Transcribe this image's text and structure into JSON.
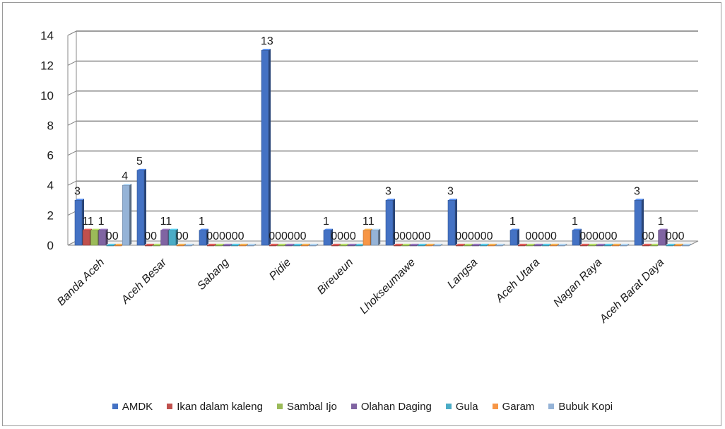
{
  "chart_data": {
    "type": "bar",
    "title": "",
    "xlabel": "",
    "ylabel": "",
    "ylim": [
      0,
      14
    ],
    "yticks": [
      "0",
      "2",
      "4",
      "6",
      "8",
      "10",
      "12",
      "14"
    ],
    "grid": true,
    "legend_position": "bottom",
    "categories": [
      "Banda Aceh",
      "Aceh Besar",
      "Sabang",
      "Pidie",
      "Bireueun",
      "Lhokseumawe",
      "Langsa",
      "Aceh Utara",
      "Nagan Raya",
      "Aceh Barat Daya"
    ],
    "series": [
      {
        "name": "AMDK",
        "color": "#4472C4",
        "values": [
          3,
          5,
          1,
          13,
          1,
          3,
          3,
          1,
          1,
          3
        ]
      },
      {
        "name": "Ikan dalam kaleng",
        "color": "#C0504D",
        "values": [
          1,
          0,
          0,
          0,
          0,
          0,
          0,
          0,
          0,
          0
        ]
      },
      {
        "name": "Sambal Ijo",
        "color": "#9BBB59",
        "values": [
          1,
          0,
          0,
          0,
          0,
          0,
          0,
          0,
          0,
          0
        ]
      },
      {
        "name": "Olahan Daging",
        "color": "#8064A2",
        "values": [
          1,
          1,
          0,
          0,
          0,
          0,
          0,
          0,
          0,
          1
        ]
      },
      {
        "name": "Gula",
        "color": "#4BACC6",
        "values": [
          0,
          1,
          0,
          0,
          0,
          0,
          0,
          0,
          0,
          0
        ]
      },
      {
        "name": "Garam",
        "color": "#F79646",
        "values": [
          0,
          0,
          0,
          0,
          1,
          0,
          0,
          0,
          0,
          0
        ]
      },
      {
        "name": "Bubuk Kopi",
        "color": "#95B3D7",
        "values": [
          4,
          0,
          0,
          0,
          1,
          0,
          0,
          0,
          0,
          0
        ]
      }
    ],
    "data_labels": [
      [
        [
          "3",
          0
        ],
        [
          "11",
          1
        ],
        [
          "1",
          3
        ],
        [
          "00",
          4
        ],
        [
          "4",
          6
        ]
      ],
      [
        [
          "5",
          0
        ],
        [
          "00",
          1
        ],
        [
          "11",
          3
        ],
        [
          "00",
          5
        ]
      ],
      [
        [
          "1",
          0
        ],
        [
          "000000",
          1
        ]
      ],
      [
        [
          "13",
          0
        ],
        [
          "000000",
          1
        ]
      ],
      [
        [
          "1",
          0
        ],
        [
          "0000",
          1
        ],
        [
          "11",
          5
        ]
      ],
      [
        [
          "3",
          0
        ],
        [
          "000000",
          1
        ]
      ],
      [
        [
          "3",
          0
        ],
        [
          "000000",
          1
        ]
      ],
      [
        [
          "1",
          0
        ],
        [
          "00000",
          2
        ]
      ],
      [
        [
          "1",
          0
        ],
        [
          "000000",
          1
        ]
      ],
      [
        [
          "3",
          0
        ],
        [
          "00",
          1
        ],
        [
          "1",
          3
        ],
        [
          "000",
          4
        ]
      ]
    ]
  }
}
